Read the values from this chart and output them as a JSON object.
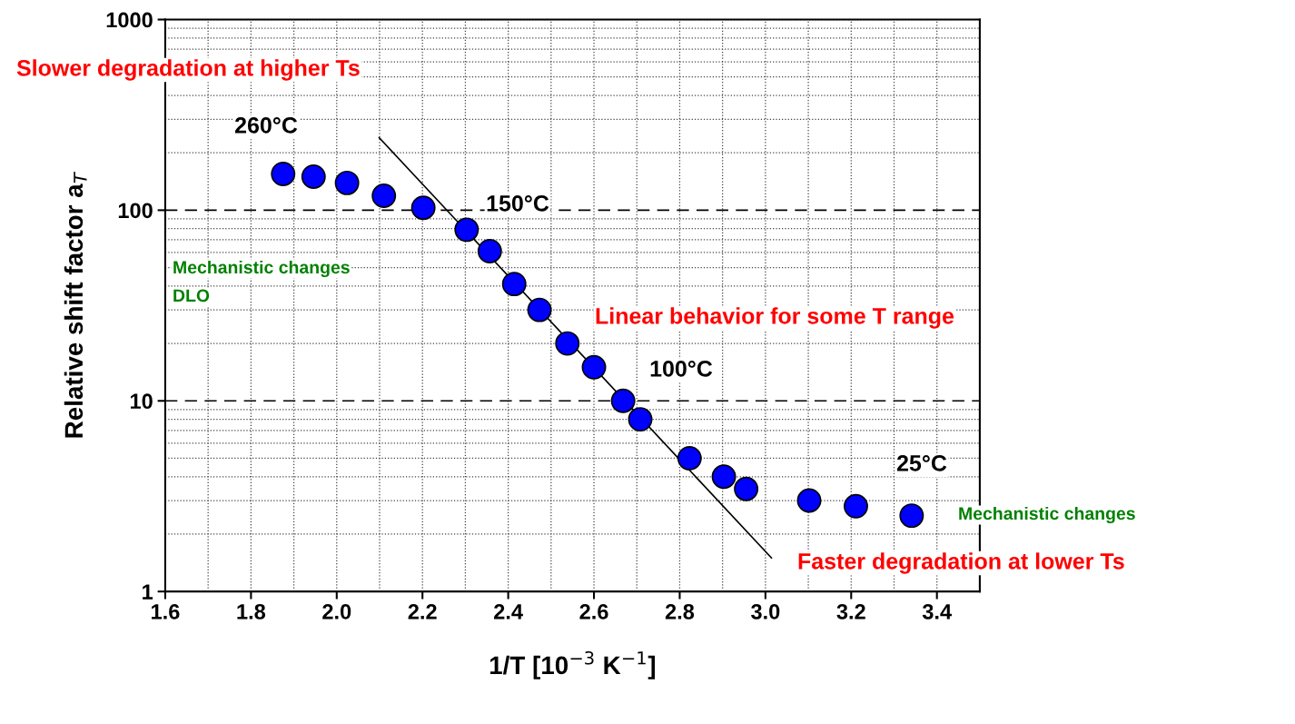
{
  "chart_data": {
    "type": "scatter",
    "xlabel": "1/T [10$^{−3}$ K$^{−1}$]",
    "ylabel": "Relative shift factor a$_{T}$",
    "x": [
      1.875,
      1.946,
      2.024,
      2.11,
      2.202,
      2.303,
      2.357,
      2.414,
      2.473,
      2.538,
      2.6,
      2.668,
      2.708,
      2.823,
      2.903,
      2.955,
      3.102,
      3.211,
      3.341
    ],
    "series": [
      {
        "color": "#0000ff",
        "marker": "circle",
        "values": [
          155,
          150,
          139,
          119,
          103,
          79,
          61,
          41,
          30,
          20,
          15,
          10,
          8,
          5,
          4,
          3.45,
          3,
          2.8,
          2.5
        ]
      },
      {
        "type": "line",
        "color": "#000000",
        "marker": "none",
        "line_style": "solid",
        "x": [
          2.099,
          3.014
        ],
        "values": [
          240,
          1.5
        ]
      }
    ],
    "log": "y",
    "xlim": [
      1.6,
      3.5
    ],
    "ylim": [
      1,
      1000
    ],
    "xticks": [
      {
        "value": 1.6,
        "label": "1.6"
      },
      {
        "value": 1.8,
        "label": "1.8"
      },
      {
        "value": 2.0,
        "label": "2.0"
      },
      {
        "value": 2.2,
        "label": "2.2"
      },
      {
        "value": 2.4,
        "label": "2.4"
      },
      {
        "value": 2.6,
        "label": "2.6"
      },
      {
        "value": 2.8,
        "label": "2.8"
      },
      {
        "value": 3.0,
        "label": "3.0"
      },
      {
        "value": 3.2,
        "label": "3.2"
      },
      {
        "value": 3.4,
        "label": "3.4"
      }
    ],
    "yticks": [
      1,
      10,
      100,
      1000
    ],
    "grid": true,
    "legend": false,
    "ref_lines": [
      {
        "axis": "y",
        "value": 100,
        "line_style": "dashed",
        "color": "#000000"
      },
      {
        "axis": "y",
        "value": 10,
        "line_style": "dashed",
        "color": "#000000"
      }
    ],
    "annotations": [
      "Slower degradation at higher Ts",
      "260°C",
      "150°C",
      "Mechanistic changes",
      "DLO",
      "Linear behavior for some T range",
      "100°C",
      "25°C",
      "Mechanistic changes",
      "Faster degradation at lower Ts"
    ]
  }
}
